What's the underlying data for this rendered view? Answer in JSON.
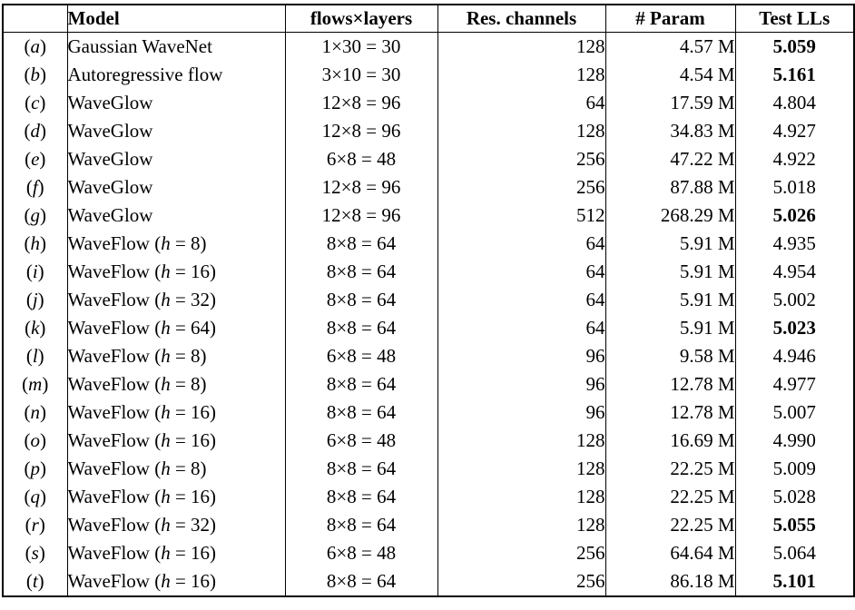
{
  "table": {
    "headers": {
      "label": "",
      "model": "Model",
      "flows": "flows×layers",
      "channels": "Res. channels",
      "params": "# Param",
      "test_ll": "Test LLs"
    },
    "rows": [
      {
        "lp": "(",
        "lc": "a",
        "rp": ")",
        "model_pre": "Gaussian WaveNet",
        "model_var": "",
        "model_post": "",
        "flows": "1×30 = 30",
        "channels": "128",
        "params": "4.57 M",
        "test_ll": "5.059",
        "bold": true
      },
      {
        "lp": "(",
        "lc": "b",
        "rp": ")",
        "model_pre": "Autoregressive flow",
        "model_var": "",
        "model_post": "",
        "flows": "3×10 = 30",
        "channels": "128",
        "params": "4.54 M",
        "test_ll": "5.161",
        "bold": true
      },
      {
        "lp": "(",
        "lc": "c",
        "rp": ")",
        "model_pre": "WaveGlow",
        "model_var": "",
        "model_post": "",
        "flows": "12×8 = 96",
        "channels": "64",
        "params": "17.59 M",
        "test_ll": "4.804",
        "bold": false
      },
      {
        "lp": "(",
        "lc": "d",
        "rp": ")",
        "model_pre": "WaveGlow",
        "model_var": "",
        "model_post": "",
        "flows": "12×8 = 96",
        "channels": "128",
        "params": "34.83 M",
        "test_ll": "4.927",
        "bold": false
      },
      {
        "lp": "(",
        "lc": "e",
        "rp": ")",
        "model_pre": "WaveGlow",
        "model_var": "",
        "model_post": "",
        "flows": "6×8 = 48",
        "channels": "256",
        "params": "47.22 M",
        "test_ll": "4.922",
        "bold": false
      },
      {
        "lp": "(",
        "lc": "f",
        "rp": ")",
        "model_pre": "WaveGlow",
        "model_var": "",
        "model_post": "",
        "flows": "12×8 = 96",
        "channels": "256",
        "params": "87.88 M",
        "test_ll": "5.018",
        "bold": false
      },
      {
        "lp": "(",
        "lc": "g",
        "rp": ")",
        "model_pre": "WaveGlow",
        "model_var": "",
        "model_post": "",
        "flows": "12×8 = 96",
        "channels": "512",
        "params": "268.29 M",
        "test_ll": "5.026",
        "bold": true
      },
      {
        "lp": "(",
        "lc": "h",
        "rp": ")",
        "model_pre": "WaveFlow (",
        "model_var": "h",
        "model_post": " = 8)",
        "flows": "8×8 = 64",
        "channels": "64",
        "params": "5.91 M",
        "test_ll": "4.935",
        "bold": false
      },
      {
        "lp": "(",
        "lc": "i",
        "rp": ")",
        "model_pre": "WaveFlow (",
        "model_var": "h",
        "model_post": " = 16)",
        "flows": "8×8 = 64",
        "channels": "64",
        "params": "5.91 M",
        "test_ll": "4.954",
        "bold": false
      },
      {
        "lp": "(",
        "lc": "j",
        "rp": ")",
        "model_pre": "WaveFlow (",
        "model_var": "h",
        "model_post": " = 32)",
        "flows": "8×8 = 64",
        "channels": "64",
        "params": "5.91 M",
        "test_ll": "5.002",
        "bold": false
      },
      {
        "lp": "(",
        "lc": "k",
        "rp": ")",
        "model_pre": "WaveFlow (",
        "model_var": "h",
        "model_post": " = 64)",
        "flows": "8×8 = 64",
        "channels": "64",
        "params": "5.91 M",
        "test_ll": "5.023",
        "bold": true
      },
      {
        "lp": "(",
        "lc": "l",
        "rp": ")",
        "model_pre": "WaveFlow (",
        "model_var": "h",
        "model_post": " = 8)",
        "flows": "6×8 = 48",
        "channels": "96",
        "params": "9.58 M",
        "test_ll": "4.946",
        "bold": false
      },
      {
        "lp": "(",
        "lc": "m",
        "rp": ")",
        "model_pre": "WaveFlow (",
        "model_var": "h",
        "model_post": " = 8)",
        "flows": "8×8 = 64",
        "channels": "96",
        "params": "12.78 M",
        "test_ll": "4.977",
        "bold": false
      },
      {
        "lp": "(",
        "lc": "n",
        "rp": ")",
        "model_pre": "WaveFlow (",
        "model_var": "h",
        "model_post": " = 16)",
        "flows": "8×8 = 64",
        "channels": "96",
        "params": "12.78 M",
        "test_ll": "5.007",
        "bold": false
      },
      {
        "lp": "(",
        "lc": "o",
        "rp": ")",
        "model_pre": "WaveFlow (",
        "model_var": "h",
        "model_post": " = 16)",
        "flows": "6×8 = 48",
        "channels": "128",
        "params": "16.69 M",
        "test_ll": "4.990",
        "bold": false
      },
      {
        "lp": "(",
        "lc": "p",
        "rp": ")",
        "model_pre": "WaveFlow (",
        "model_var": "h",
        "model_post": " = 8)",
        "flows": "8×8 = 64",
        "channels": "128",
        "params": "22.25 M",
        "test_ll": "5.009",
        "bold": false
      },
      {
        "lp": "(",
        "lc": "q",
        "rp": ")",
        "model_pre": "WaveFlow (",
        "model_var": "h",
        "model_post": " = 16)",
        "flows": "8×8 = 64",
        "channels": "128",
        "params": "22.25 M",
        "test_ll": "5.028",
        "bold": false
      },
      {
        "lp": "(",
        "lc": "r",
        "rp": ")",
        "model_pre": "WaveFlow (",
        "model_var": "h",
        "model_post": " = 32)",
        "flows": "8×8 = 64",
        "channels": "128",
        "params": "22.25 M",
        "test_ll": "5.055",
        "bold": true
      },
      {
        "lp": "(",
        "lc": "s",
        "rp": ")",
        "model_pre": "WaveFlow (",
        "model_var": "h",
        "model_post": " = 16)",
        "flows": "6×8 = 48",
        "channels": "256",
        "params": "64.64 M",
        "test_ll": "5.064",
        "bold": false
      },
      {
        "lp": "(",
        "lc": "t",
        "rp": ")",
        "model_pre": "WaveFlow (",
        "model_var": "h",
        "model_post": " = 16)",
        "flows": "8×8 = 64",
        "channels": "256",
        "params": "86.18 M",
        "test_ll": "5.101",
        "bold": true
      }
    ],
    "colors": {
      "text": "#000000",
      "background": "#ffffff",
      "rule": "#000000"
    }
  }
}
